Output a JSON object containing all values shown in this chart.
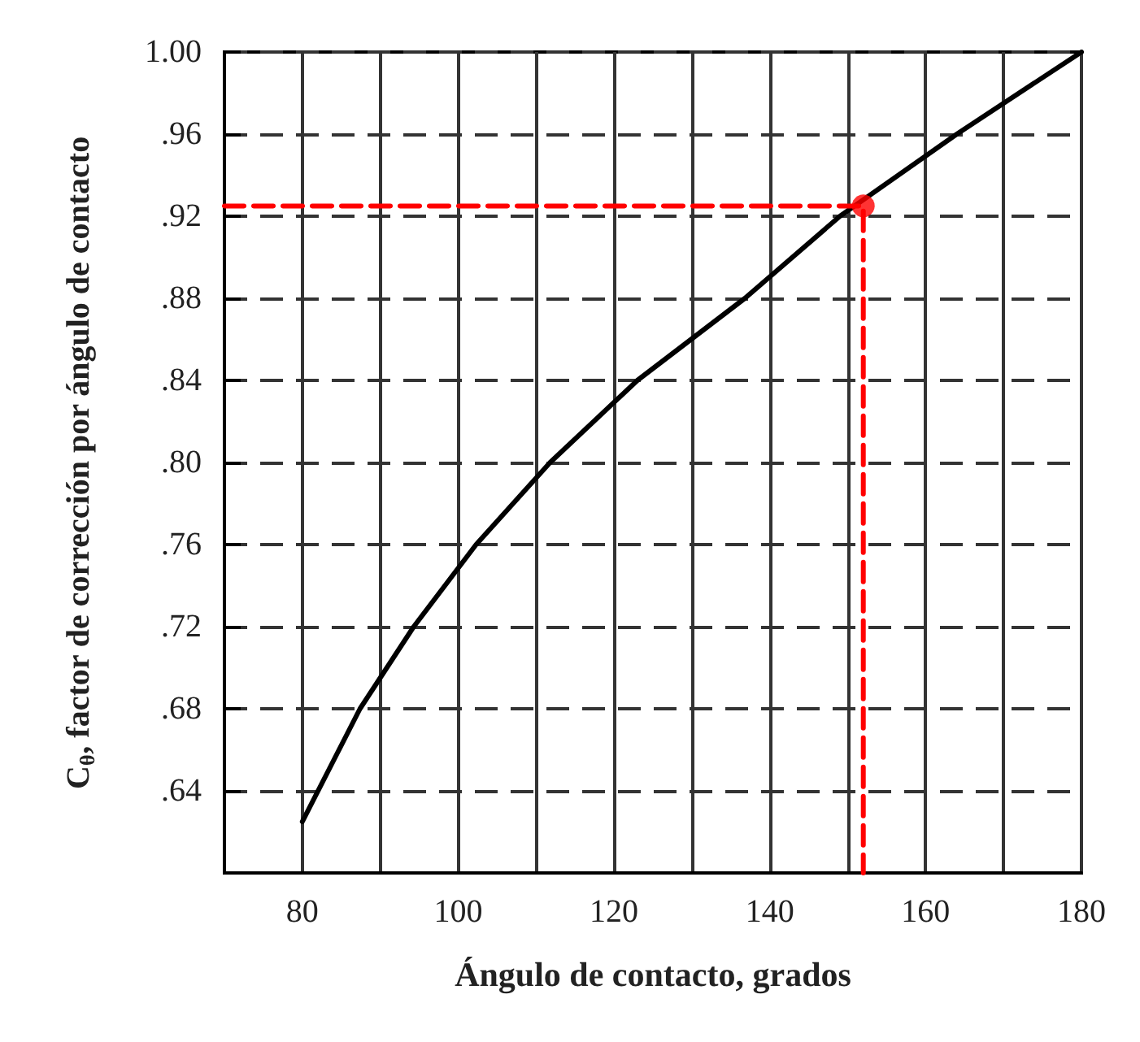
{
  "chart_data": {
    "type": "line",
    "xlabel": "Ángulo de contacto, grados",
    "ylabel": "C$_{θ}$, factor de corrección por ángulo de contacto",
    "series": [
      {
        "type": "line",
        "color": "#000000",
        "marker": "none",
        "line_style": "solid",
        "x": [
          80,
          87.4,
          94.3,
          102.3,
          111.8,
          123,
          136.8,
          149,
          164,
          180
        ],
        "values": [
          0.625,
          0.68,
          0.72,
          0.76,
          0.8,
          0.84,
          0.88,
          0.92,
          0.96,
          1.0
        ]
      },
      {
        "type": "line",
        "color": "#ff0000",
        "marker": "none",
        "line_style": "dashed",
        "x": [
          70,
          152,
          152
        ],
        "values": [
          0.925,
          0.925,
          0.6
        ]
      },
      {
        "type": "scatter",
        "color": "#ff0000",
        "marker": "circle",
        "x": [
          152
        ],
        "values": [
          0.925
        ]
      }
    ],
    "xlim": [
      70,
      180
    ],
    "xticks": [
      80,
      {
        "value": 90,
        "label": null
      },
      100,
      {
        "value": 110,
        "label": null
      },
      120,
      {
        "value": 130,
        "label": null
      },
      140,
      {
        "value": 150,
        "label": null
      },
      160,
      {
        "value": 170,
        "label": null
      },
      180
    ],
    "ylim": [
      0.6,
      1.0
    ],
    "yticks": [
      {
        "value": 0.64,
        "label": ".64"
      },
      {
        "value": 0.68,
        "label": ".68"
      },
      {
        "value": 0.72,
        "label": ".72"
      },
      {
        "value": 0.76,
        "label": ".76"
      },
      {
        "value": 0.8,
        "label": ".80"
      },
      {
        "value": 0.84,
        "label": ".84"
      },
      {
        "value": 0.88,
        "label": ".88"
      },
      {
        "value": 0.92,
        "label": ".92"
      },
      {
        "value": 0.96,
        "label": ".96"
      },
      {
        "value": 1.0,
        "label": "1.00"
      }
    ],
    "grid": true
  }
}
